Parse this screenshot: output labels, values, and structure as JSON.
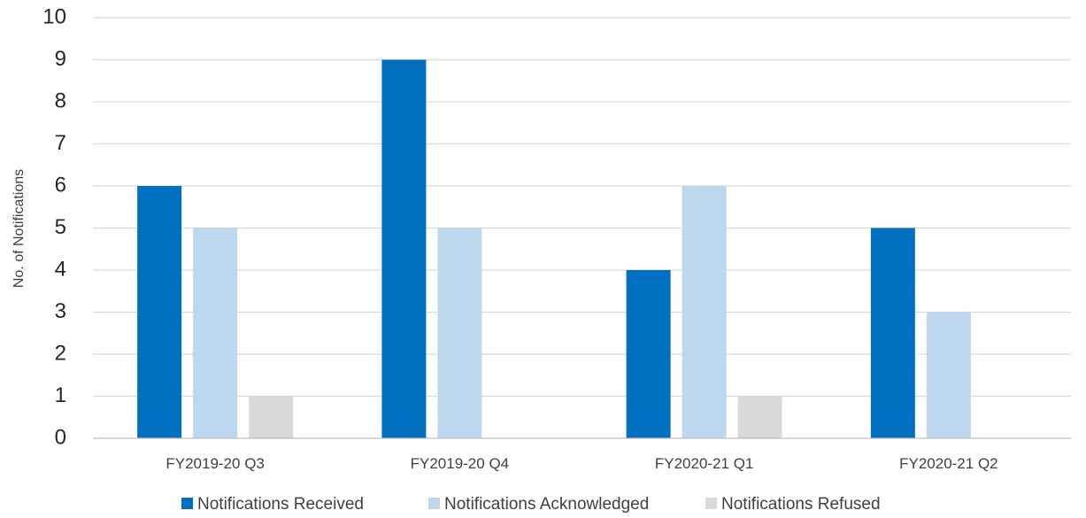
{
  "chart_data": {
    "type": "bar",
    "title": "",
    "xlabel": "",
    "ylabel": "No. of Notifications",
    "ylim": [
      0,
      10
    ],
    "yticks": [
      0,
      1,
      2,
      3,
      4,
      5,
      6,
      7,
      8,
      9,
      10
    ],
    "grid": true,
    "legend_position": "bottom",
    "categories": [
      "FY2019-20 Q3",
      "FY2019-20 Q4",
      "FY2020-21 Q1",
      "FY2020-21 Q2"
    ],
    "series": [
      {
        "name": "Notifications Received",
        "color": "#0070c0",
        "values": [
          6,
          9,
          4,
          5
        ]
      },
      {
        "name": "Notifications Acknowledged",
        "color": "#bdd7ee",
        "values": [
          5,
          5,
          6,
          3
        ]
      },
      {
        "name": "Notifications Refused",
        "color": "#d9d9d9",
        "values": [
          1,
          0,
          1,
          0
        ]
      }
    ]
  }
}
